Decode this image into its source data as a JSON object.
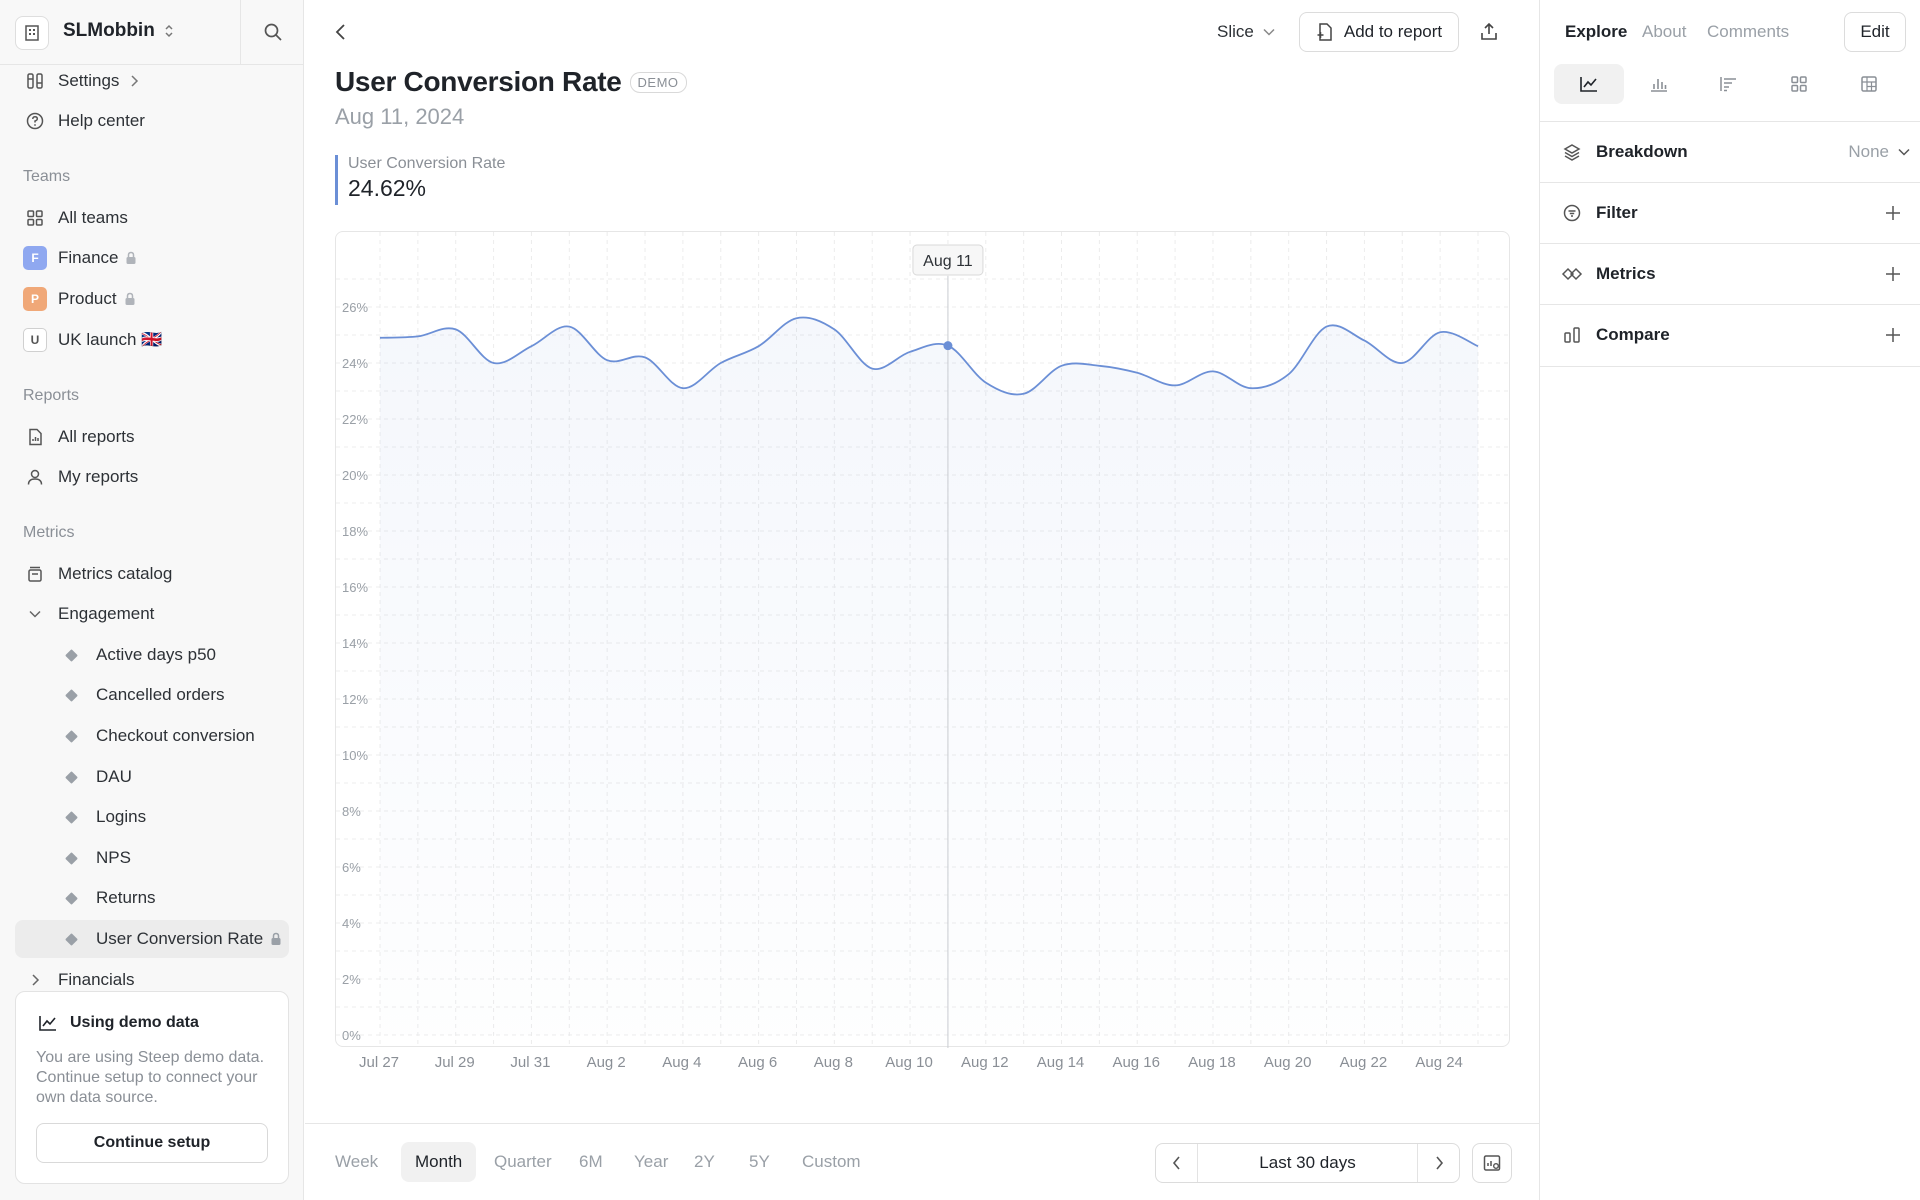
{
  "workspace": {
    "name": "SLMobbin"
  },
  "sidebar": {
    "top_items": [
      {
        "label": "Settings",
        "icon": "sliders-icon"
      },
      {
        "label": "Help center",
        "icon": "help-circle-icon"
      }
    ],
    "teams_heading": "Teams",
    "teams": [
      {
        "label": "All teams",
        "icon": "grid-icon"
      },
      {
        "label": "Finance",
        "badge": "F",
        "badge_color": "#8fa8f0",
        "locked": true
      },
      {
        "label": "Product",
        "badge": "P",
        "badge_color": "#f0a878",
        "locked": true
      },
      {
        "label": "UK launch 🇬🇧",
        "badge": "U",
        "badge_color": "#ffffff"
      }
    ],
    "reports_heading": "Reports",
    "reports": [
      {
        "label": "All reports",
        "icon": "file-chart-icon"
      },
      {
        "label": "My reports",
        "icon": "user-icon"
      }
    ],
    "metrics_heading": "Metrics",
    "metrics_catalog": "Metrics catalog",
    "engagement": "Engagement",
    "engagement_items": [
      "Active days p50",
      "Cancelled orders",
      "Checkout conversion",
      "DAU",
      "Logins",
      "NPS",
      "Returns",
      "User Conversion Rate"
    ],
    "financials": "Financials",
    "demo_card": {
      "title": "Using demo data",
      "text": "You are using Steep demo data. Continue setup to connect your own data source.",
      "button": "Continue setup"
    }
  },
  "header": {
    "slice_label": "Slice",
    "add_to_report": "Add to report"
  },
  "metric": {
    "title": "User Conversion Rate",
    "badge": "DEMO",
    "date": "Aug 11, 2024",
    "kpi_label": "User Conversion Rate",
    "kpi_value": "24.62%"
  },
  "chart_data": {
    "type": "area",
    "x": [
      "Jul 27",
      "Jul 28",
      "Jul 29",
      "Jul 30",
      "Jul 31",
      "Aug 1",
      "Aug 2",
      "Aug 3",
      "Aug 4",
      "Aug 5",
      "Aug 6",
      "Aug 7",
      "Aug 8",
      "Aug 9",
      "Aug 10",
      "Aug 11",
      "Aug 12",
      "Aug 13",
      "Aug 14",
      "Aug 15",
      "Aug 16",
      "Aug 17",
      "Aug 18",
      "Aug 19",
      "Aug 20",
      "Aug 21",
      "Aug 22",
      "Aug 23",
      "Aug 24",
      "Aug 25"
    ],
    "values": [
      24.9,
      24.95,
      25.2,
      24.0,
      24.6,
      25.3,
      24.1,
      24.2,
      23.1,
      24.0,
      24.6,
      25.6,
      25.2,
      23.8,
      24.4,
      24.62,
      23.3,
      22.9,
      23.9,
      23.9,
      23.65,
      23.2,
      23.7,
      23.1,
      23.6,
      25.3,
      24.8,
      24.0,
      25.1,
      24.6
    ],
    "x_tick_labels": [
      "Jul 27",
      "Jul 29",
      "Jul 31",
      "Aug 2",
      "Aug 4",
      "Aug 6",
      "Aug 8",
      "Aug 10",
      "Aug 12",
      "Aug 14",
      "Aug 16",
      "Aug 18",
      "Aug 20",
      "Aug 22",
      "Aug 24"
    ],
    "y_ticks": [
      "0%",
      "2%",
      "4%",
      "6%",
      "8%",
      "10%",
      "12%",
      "14%",
      "16%",
      "18%",
      "20%",
      "22%",
      "24%",
      "26%"
    ],
    "ylim": [
      0,
      26
    ],
    "highlight": {
      "x": "Aug 11",
      "label": "Aug 11"
    },
    "line_color": "#6b8fd6",
    "grid": true
  },
  "periods": [
    "Week",
    "Month",
    "Quarter",
    "6M",
    "Year",
    "2Y",
    "5Y",
    "Custom"
  ],
  "active_period": "Month",
  "range_label": "Last 30 days",
  "right_panel": {
    "tabs": [
      "Explore",
      "About",
      "Comments"
    ],
    "edit": "Edit",
    "rows": [
      {
        "label": "Breakdown",
        "value": "None"
      },
      {
        "label": "Filter"
      },
      {
        "label": "Metrics"
      },
      {
        "label": "Compare"
      }
    ]
  }
}
